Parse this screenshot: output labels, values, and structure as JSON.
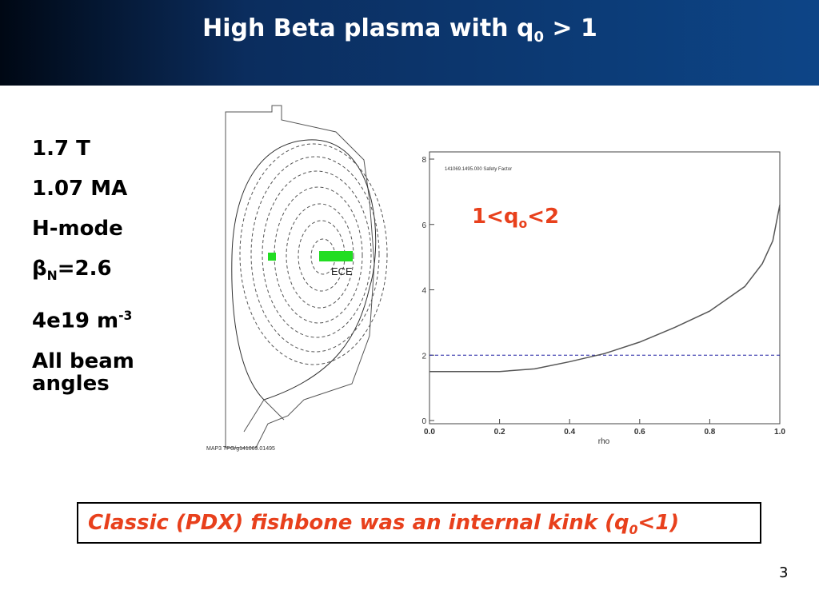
{
  "header": {
    "title": {
      "base": "High Beta plasma with q",
      "sub": "0",
      "rest": " > 1"
    }
  },
  "parameters": [
    {
      "base": "1.7 T"
    },
    {
      "base": "1.07 MA"
    },
    {
      "base": "H-mode"
    },
    {
      "base": "β",
      "sub": "N",
      "rest": "=2.6"
    },
    {
      "base": "4e19 m",
      "sup": "-3"
    },
    {
      "base": "All beam angles"
    }
  ],
  "equilibrium": {
    "label": "ECE",
    "caption": "MAP3 TPG/g141069.01495"
  },
  "chart_data": {
    "type": "line",
    "title": "141069.1495.000 Safety Factor",
    "x_label": "rho",
    "x": [
      0.0,
      0.1,
      0.2,
      0.3,
      0.4,
      0.5,
      0.6,
      0.7,
      0.8,
      0.9,
      0.95,
      0.98,
      1.0
    ],
    "series": [
      {
        "name": "q",
        "color": "#555555",
        "values": [
          1.5,
          1.5,
          1.5,
          1.58,
          1.8,
          2.05,
          2.4,
          2.85,
          3.35,
          4.1,
          4.8,
          5.5,
          6.6
        ]
      }
    ],
    "reference_line": 2,
    "reference_color": "#1a1aa0",
    "annotation": {
      "base": "1<q",
      "sub": "o",
      "rest": "<2"
    },
    "xlim": [
      0,
      1
    ],
    "ylim": [
      0,
      8
    ],
    "xticks": [
      {
        "value": 0,
        "label": "0.0"
      },
      {
        "value": 0.2,
        "label": "0.2"
      },
      {
        "value": 0.4,
        "label": "0.4"
      },
      {
        "value": 0.6,
        "label": "0.6"
      },
      {
        "value": 0.8,
        "label": "0.8"
      },
      {
        "value": 1,
        "label": "1.0"
      }
    ],
    "yticks": [
      0,
      2,
      4,
      6,
      8
    ]
  },
  "note": {
    "base": "Classic (PDX) fishbone was an internal kink (q",
    "sub": "0",
    "rest": "<1)"
  },
  "page_number": "3"
}
